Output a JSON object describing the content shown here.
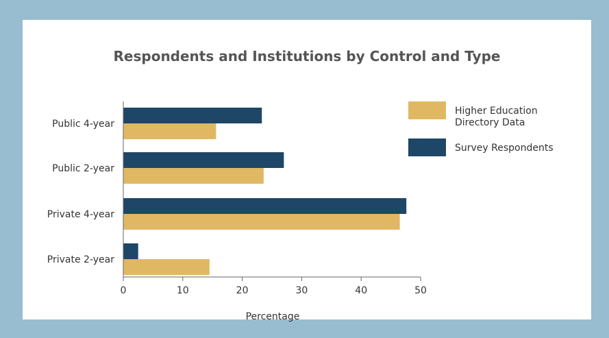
{
  "chart_data": {
    "type": "bar",
    "orientation": "horizontal",
    "title": "Respondents and Institutions by Control and Type",
    "xlabel": "Percentage",
    "ylabel": "",
    "categories": [
      "Public 4-year",
      "Public 2-year",
      "Private 4-year",
      "Private 2-year"
    ],
    "series": [
      {
        "name": "Survey Respondents",
        "color": "#1e4666",
        "values": [
          23.3,
          27.0,
          47.6,
          2.5
        ]
      },
      {
        "name": "Higher Education Directory Data",
        "legend_lines": [
          "Higher Education",
          "Directory Data"
        ],
        "color": "#e0b863",
        "values": [
          15.6,
          23.6,
          46.5,
          14.5
        ]
      }
    ],
    "xlim": [
      0,
      50
    ],
    "xticks": [
      "0",
      "10",
      "20",
      "30",
      "40",
      "50"
    ],
    "grid": false,
    "legend_position": "top-right"
  }
}
